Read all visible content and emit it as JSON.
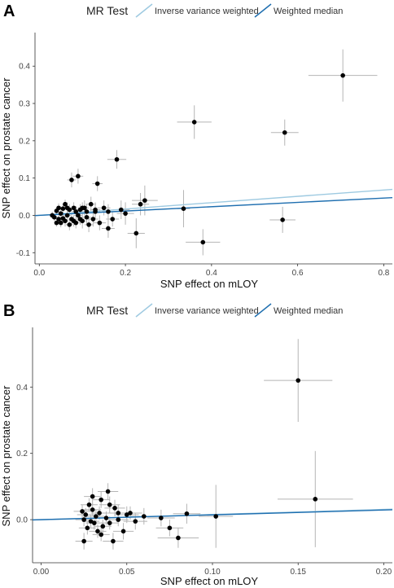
{
  "chart_data": [
    {
      "type": "scatter",
      "panel": "A",
      "xlabel": "SNP effect on mLOY",
      "ylabel": "SNP effect on prostate cancer",
      "xlim": [
        -0.01,
        0.82
      ],
      "ylim": [
        -0.13,
        0.49
      ],
      "xticks": [
        0.0,
        0.2,
        0.4,
        0.6,
        0.8
      ],
      "xtick_labels": [
        "0.0",
        "0.2",
        "0.4",
        "0.6",
        "0.8"
      ],
      "yticks": [
        -0.1,
        0.0,
        0.1,
        0.2,
        0.3,
        0.4
      ],
      "ytick_labels": [
        "-0.1",
        "0.0",
        "0.1",
        "0.2",
        "0.3",
        "0.4"
      ],
      "legend": {
        "title": "MR Test",
        "position": "top",
        "entries": [
          {
            "label": "Inverse variance weighted",
            "color": "#9ecae1"
          },
          {
            "label": "Weighted median",
            "color": "#1f6fb0"
          }
        ]
      },
      "lines": [
        {
          "name": "Inverse variance weighted",
          "slope": 0.085,
          "intercept": 0,
          "color": "#9ecae1"
        },
        {
          "name": "Weighted median",
          "slope": 0.058,
          "intercept": 0,
          "color": "#1f6fb0"
        }
      ],
      "points": [
        {
          "x": 0.705,
          "y": 0.375,
          "xerr": 0.08,
          "yerr": 0.07
        },
        {
          "x": 0.57,
          "y": 0.222,
          "xerr": 0.032,
          "yerr": 0.035
        },
        {
          "x": 0.565,
          "y": -0.012,
          "xerr": 0.03,
          "yerr": 0.035
        },
        {
          "x": 0.36,
          "y": 0.25,
          "xerr": 0.04,
          "yerr": 0.045
        },
        {
          "x": 0.38,
          "y": -0.072,
          "xerr": 0.04,
          "yerr": 0.035
        },
        {
          "x": 0.335,
          "y": 0.018,
          "xerr": 0.015,
          "yerr": 0.05
        },
        {
          "x": 0.18,
          "y": 0.15,
          "xerr": 0.022,
          "yerr": 0.025
        },
        {
          "x": 0.09,
          "y": 0.105,
          "xerr": 0.012,
          "yerr": 0.02
        },
        {
          "x": 0.075,
          "y": 0.095,
          "xerr": 0.01,
          "yerr": 0.02
        },
        {
          "x": 0.135,
          "y": 0.085,
          "xerr": 0.012,
          "yerr": 0.02
        },
        {
          "x": 0.245,
          "y": 0.04,
          "xerr": 0.03,
          "yerr": 0.04
        },
        {
          "x": 0.235,
          "y": 0.03,
          "xerr": 0.02,
          "yerr": 0.03
        },
        {
          "x": 0.225,
          "y": -0.048,
          "xerr": 0.02,
          "yerr": 0.04
        },
        {
          "x": 0.2,
          "y": 0.005,
          "xerr": 0.02,
          "yerr": 0.03
        },
        {
          "x": 0.16,
          "y": -0.035,
          "xerr": 0.015,
          "yerr": 0.025
        },
        {
          "x": 0.15,
          "y": 0.02,
          "xerr": 0.015,
          "yerr": 0.02
        },
        {
          "x": 0.14,
          "y": -0.02,
          "xerr": 0.015,
          "yerr": 0.02
        },
        {
          "x": 0.13,
          "y": 0.01,
          "xerr": 0.012,
          "yerr": 0.02
        },
        {
          "x": 0.12,
          "y": 0.03,
          "xerr": 0.012,
          "yerr": 0.02
        },
        {
          "x": 0.11,
          "y": -0.005,
          "xerr": 0.01,
          "yerr": 0.02
        },
        {
          "x": 0.105,
          "y": 0.02,
          "xerr": 0.01,
          "yerr": 0.02
        },
        {
          "x": 0.1,
          "y": -0.015,
          "xerr": 0.01,
          "yerr": 0.02
        },
        {
          "x": 0.095,
          "y": 0.015,
          "xerr": 0.01,
          "yerr": 0.015
        },
        {
          "x": 0.09,
          "y": 0.0,
          "xerr": 0.01,
          "yerr": 0.015
        },
        {
          "x": 0.085,
          "y": -0.02,
          "xerr": 0.01,
          "yerr": 0.015
        },
        {
          "x": 0.08,
          "y": 0.02,
          "xerr": 0.008,
          "yerr": 0.015
        },
        {
          "x": 0.075,
          "y": -0.01,
          "xerr": 0.008,
          "yerr": 0.015
        },
        {
          "x": 0.07,
          "y": 0.015,
          "xerr": 0.008,
          "yerr": 0.015
        },
        {
          "x": 0.065,
          "y": 0.0,
          "xerr": 0.008,
          "yerr": 0.015
        },
        {
          "x": 0.06,
          "y": -0.015,
          "xerr": 0.008,
          "yerr": 0.015
        },
        {
          "x": 0.055,
          "y": 0.018,
          "xerr": 0.006,
          "yerr": 0.012
        },
        {
          "x": 0.05,
          "y": 0.005,
          "xerr": 0.006,
          "yerr": 0.012
        },
        {
          "x": 0.045,
          "y": -0.01,
          "xerr": 0.006,
          "yerr": 0.012
        },
        {
          "x": 0.04,
          "y": 0.012,
          "xerr": 0.005,
          "yerr": 0.01
        },
        {
          "x": 0.035,
          "y": -0.005,
          "xerr": 0.005,
          "yerr": 0.01
        },
        {
          "x": 0.03,
          "y": 0.0,
          "xerr": 0.005,
          "yerr": 0.01
        },
        {
          "x": 0.04,
          "y": -0.02,
          "xerr": 0.005,
          "yerr": 0.01
        },
        {
          "x": 0.06,
          "y": 0.03,
          "xerr": 0.006,
          "yerr": 0.012
        },
        {
          "x": 0.05,
          "y": -0.02,
          "xerr": 0.006,
          "yerr": 0.012
        },
        {
          "x": 0.07,
          "y": -0.025,
          "xerr": 0.008,
          "yerr": 0.015
        },
        {
          "x": 0.115,
          "y": -0.025,
          "xerr": 0.01,
          "yerr": 0.02
        },
        {
          "x": 0.125,
          "y": -0.01,
          "xerr": 0.012,
          "yerr": 0.02
        },
        {
          "x": 0.13,
          "y": 0.015,
          "xerr": 0.012,
          "yerr": 0.02
        },
        {
          "x": 0.16,
          "y": 0.01,
          "xerr": 0.015,
          "yerr": 0.02
        },
        {
          "x": 0.17,
          "y": -0.01,
          "xerr": 0.015,
          "yerr": 0.02
        },
        {
          "x": 0.19,
          "y": 0.015,
          "xerr": 0.02,
          "yerr": 0.025
        },
        {
          "x": 0.1,
          "y": 0.02,
          "xerr": 0.01,
          "yerr": 0.015
        },
        {
          "x": 0.085,
          "y": 0.01,
          "xerr": 0.01,
          "yerr": 0.015
        },
        {
          "x": 0.055,
          "y": -0.008,
          "xerr": 0.006,
          "yerr": 0.012
        },
        {
          "x": 0.045,
          "y": 0.02,
          "xerr": 0.006,
          "yerr": 0.012
        },
        {
          "x": 0.065,
          "y": 0.02,
          "xerr": 0.008,
          "yerr": 0.015
        },
        {
          "x": 0.08,
          "y": -0.015,
          "xerr": 0.008,
          "yerr": 0.015
        },
        {
          "x": 0.095,
          "y": -0.01,
          "xerr": 0.01,
          "yerr": 0.015
        },
        {
          "x": 0.11,
          "y": 0.01,
          "xerr": 0.01,
          "yerr": 0.02
        }
      ]
    },
    {
      "type": "scatter",
      "panel": "B",
      "xlabel": "SNP effect on mLOY",
      "ylabel": "SNP effect on prostate cancer",
      "xlim": [
        -0.005,
        0.205
      ],
      "ylim": [
        -0.13,
        0.58
      ],
      "xticks": [
        0.0,
        0.05,
        0.1,
        0.15,
        0.2
      ],
      "xtick_labels": [
        "0.00",
        "0.05",
        "0.10",
        "0.15",
        "0.20"
      ],
      "yticks": [
        0.0,
        0.2,
        0.4
      ],
      "ytick_labels": [
        "0.0",
        "0.2",
        "0.4"
      ],
      "legend": {
        "title": "MR Test",
        "position": "top",
        "entries": [
          {
            "label": "Inverse variance weighted",
            "color": "#9ecae1"
          },
          {
            "label": "Weighted median",
            "color": "#1f6fb0"
          }
        ]
      },
      "lines": [
        {
          "name": "Inverse variance weighted",
          "slope": 0.155,
          "intercept": 0,
          "color": "#9ecae1"
        },
        {
          "name": "Weighted median",
          "slope": 0.145,
          "intercept": 0,
          "color": "#1f6fb0"
        }
      ],
      "points": [
        {
          "x": 0.15,
          "y": 0.42,
          "xerr": 0.02,
          "yerr": 0.125
        },
        {
          "x": 0.16,
          "y": 0.062,
          "xerr": 0.022,
          "yerr": 0.145
        },
        {
          "x": 0.102,
          "y": 0.01,
          "xerr": 0.01,
          "yerr": 0.095
        },
        {
          "x": 0.085,
          "y": 0.018,
          "xerr": 0.008,
          "yerr": 0.03
        },
        {
          "x": 0.08,
          "y": -0.055,
          "xerr": 0.012,
          "yerr": 0.03
        },
        {
          "x": 0.075,
          "y": -0.025,
          "xerr": 0.008,
          "yerr": 0.025
        },
        {
          "x": 0.07,
          "y": 0.005,
          "xerr": 0.008,
          "yerr": 0.025
        },
        {
          "x": 0.06,
          "y": 0.01,
          "xerr": 0.008,
          "yerr": 0.025
        },
        {
          "x": 0.055,
          "y": -0.005,
          "xerr": 0.007,
          "yerr": 0.025
        },
        {
          "x": 0.05,
          "y": 0.015,
          "xerr": 0.007,
          "yerr": 0.025
        },
        {
          "x": 0.048,
          "y": -0.035,
          "xerr": 0.006,
          "yerr": 0.025
        },
        {
          "x": 0.045,
          "y": 0.02,
          "xerr": 0.006,
          "yerr": 0.025
        },
        {
          "x": 0.043,
          "y": 0.035,
          "xerr": 0.006,
          "yerr": 0.025
        },
        {
          "x": 0.042,
          "y": -0.065,
          "xerr": 0.006,
          "yerr": 0.025
        },
        {
          "x": 0.04,
          "y": 0.045,
          "xerr": 0.006,
          "yerr": 0.025
        },
        {
          "x": 0.039,
          "y": 0.085,
          "xerr": 0.006,
          "yerr": 0.025
        },
        {
          "x": 0.038,
          "y": 0.005,
          "xerr": 0.005,
          "yerr": 0.02
        },
        {
          "x": 0.036,
          "y": -0.02,
          "xerr": 0.005,
          "yerr": 0.02
        },
        {
          "x": 0.035,
          "y": 0.06,
          "xerr": 0.005,
          "yerr": 0.025
        },
        {
          "x": 0.034,
          "y": 0.02,
          "xerr": 0.005,
          "yerr": 0.02
        },
        {
          "x": 0.033,
          "y": -0.035,
          "xerr": 0.005,
          "yerr": 0.02
        },
        {
          "x": 0.032,
          "y": 0.01,
          "xerr": 0.005,
          "yerr": 0.02
        },
        {
          "x": 0.031,
          "y": -0.01,
          "xerr": 0.005,
          "yerr": 0.02
        },
        {
          "x": 0.03,
          "y": 0.07,
          "xerr": 0.005,
          "yerr": 0.025
        },
        {
          "x": 0.03,
          "y": 0.03,
          "xerr": 0.005,
          "yerr": 0.02
        },
        {
          "x": 0.029,
          "y": -0.005,
          "xerr": 0.005,
          "yerr": 0.02
        },
        {
          "x": 0.028,
          "y": 0.045,
          "xerr": 0.005,
          "yerr": 0.02
        },
        {
          "x": 0.027,
          "y": -0.025,
          "xerr": 0.005,
          "yerr": 0.02
        },
        {
          "x": 0.026,
          "y": 0.015,
          "xerr": 0.005,
          "yerr": 0.02
        },
        {
          "x": 0.025,
          "y": -0.065,
          "xerr": 0.005,
          "yerr": 0.025
        },
        {
          "x": 0.025,
          "y": 0.0,
          "xerr": 0.005,
          "yerr": 0.02
        },
        {
          "x": 0.024,
          "y": 0.025,
          "xerr": 0.005,
          "yerr": 0.02
        },
        {
          "x": 0.035,
          "y": -0.045,
          "xerr": 0.005,
          "yerr": 0.02
        },
        {
          "x": 0.04,
          "y": -0.01,
          "xerr": 0.005,
          "yerr": 0.02
        },
        {
          "x": 0.045,
          "y": 0.0,
          "xerr": 0.006,
          "yerr": 0.02
        },
        {
          "x": 0.052,
          "y": 0.02,
          "xerr": 0.007,
          "yerr": 0.02
        }
      ]
    }
  ]
}
